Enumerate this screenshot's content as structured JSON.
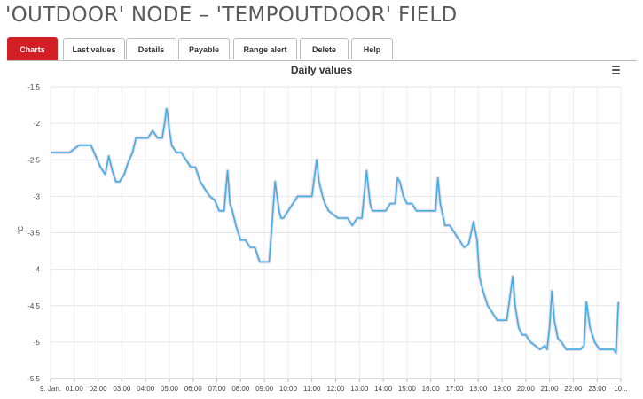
{
  "page": {
    "title": "'OUTDOOR' NODE – 'TEMPOUTDOOR' FIELD"
  },
  "tabs": [
    {
      "label": "Charts",
      "active": true
    },
    {
      "label": "Last values",
      "active": false
    },
    {
      "label": "Details",
      "active": false
    },
    {
      "label": "Payable",
      "active": false
    },
    {
      "label": "Range alert",
      "active": false
    },
    {
      "label": "Delete",
      "active": false
    },
    {
      "label": "Help",
      "active": false
    }
  ],
  "colors": {
    "accent": "#d21f25",
    "series": "#3eaee8",
    "range": "#d8c8d4"
  },
  "chart_data": {
    "type": "line",
    "title": "Daily values",
    "ylabel": "°C",
    "ylim": [
      -5.5,
      -1.5
    ],
    "yticks": [
      -1.5,
      -2,
      -2.5,
      -3,
      -3.5,
      -4,
      -4.5,
      -5,
      -5.5
    ],
    "xticks": [
      "9. Jan.",
      "01:00",
      "02:00",
      "03:00",
      "04:00",
      "05:00",
      "06:00",
      "07:00",
      "08:00",
      "09:00",
      "10:00",
      "11:00",
      "12:00",
      "13:00",
      "14:00",
      "15:00",
      "16:00",
      "17:00",
      "18:00",
      "19:00",
      "20:00",
      "21:00",
      "22:00",
      "23:00",
      "10..."
    ],
    "grid": true,
    "series": [
      {
        "x": [
          0,
          0.2,
          0.5,
          0.8,
          1.0,
          1.2,
          1.5,
          1.7,
          1.9,
          2.1,
          2.3,
          2.45,
          2.6,
          2.75,
          2.9,
          3.1,
          3.25,
          3.45,
          3.6,
          3.8,
          3.95,
          4.1,
          4.3,
          4.5,
          4.7,
          4.8,
          4.88,
          4.92,
          5.0,
          5.1,
          5.3,
          5.5,
          5.7,
          5.9,
          6.1,
          6.3,
          6.5,
          6.7,
          6.9,
          7.1,
          7.3,
          7.45,
          7.55,
          7.65,
          7.8,
          8.0,
          8.2,
          8.4,
          8.6,
          8.8,
          9.0,
          9.2,
          9.45,
          9.62,
          9.7,
          9.8,
          10.0,
          10.2,
          10.4,
          10.6,
          10.8,
          11.0,
          11.2,
          11.3,
          11.45,
          11.55,
          11.7,
          11.9,
          12.1,
          12.3,
          12.5,
          12.7,
          12.9,
          13.1,
          13.3,
          13.45,
          13.55,
          13.7,
          13.9,
          14.1,
          14.3,
          14.5,
          14.6,
          14.7,
          14.85,
          15.0,
          15.2,
          15.4,
          15.6,
          15.8,
          16.0,
          16.2,
          16.3,
          16.4,
          16.5,
          16.6,
          16.8,
          17.0,
          17.2,
          17.4,
          17.6,
          17.8,
          17.95,
          18.05,
          18.2,
          18.4,
          18.6,
          18.8,
          19.0,
          19.2,
          19.45,
          19.55,
          19.7,
          19.85,
          20.0,
          20.2,
          20.4,
          20.6,
          20.8,
          20.9,
          21.0,
          21.1,
          21.2,
          21.35,
          21.5,
          21.7,
          21.9,
          22.1,
          22.3,
          22.45,
          22.55,
          22.7,
          22.9,
          23.1,
          23.3,
          23.5,
          23.7,
          23.8,
          23.9
        ],
        "y": [
          -2.4,
          -2.4,
          -2.4,
          -2.4,
          -2.35,
          -2.3,
          -2.3,
          -2.3,
          -2.45,
          -2.6,
          -2.7,
          -2.45,
          -2.65,
          -2.8,
          -2.8,
          -2.7,
          -2.55,
          -2.4,
          -2.2,
          -2.2,
          -2.2,
          -2.2,
          -2.1,
          -2.2,
          -2.2,
          -2.0,
          -1.8,
          -1.85,
          -2.1,
          -2.3,
          -2.4,
          -2.4,
          -2.5,
          -2.6,
          -2.6,
          -2.8,
          -2.9,
          -3.0,
          -3.05,
          -3.2,
          -3.2,
          -2.65,
          -3.1,
          -3.2,
          -3.4,
          -3.6,
          -3.6,
          -3.7,
          -3.7,
          -3.9,
          -3.9,
          -3.9,
          -2.8,
          -3.2,
          -3.3,
          -3.3,
          -3.2,
          -3.1,
          -3.0,
          -3.0,
          -3.0,
          -3.0,
          -2.5,
          -2.8,
          -3.0,
          -3.1,
          -3.2,
          -3.25,
          -3.3,
          -3.3,
          -3.3,
          -3.4,
          -3.3,
          -3.3,
          -2.65,
          -3.1,
          -3.2,
          -3.2,
          -3.2,
          -3.2,
          -3.1,
          -3.1,
          -2.75,
          -2.8,
          -3.0,
          -3.1,
          -3.1,
          -3.2,
          -3.2,
          -3.2,
          -3.2,
          -3.2,
          -2.75,
          -3.1,
          -3.25,
          -3.4,
          -3.4,
          -3.5,
          -3.6,
          -3.7,
          -3.65,
          -3.35,
          -3.6,
          -4.1,
          -4.3,
          -4.5,
          -4.6,
          -4.7,
          -4.7,
          -4.7,
          -4.1,
          -4.5,
          -4.8,
          -4.9,
          -4.9,
          -5.0,
          -5.05,
          -5.1,
          -5.05,
          -5.1,
          -4.8,
          -4.3,
          -4.7,
          -4.95,
          -5.0,
          -5.1,
          -5.1,
          -5.1,
          -5.1,
          -5.05,
          -4.45,
          -4.8,
          -5.0,
          -5.1,
          -5.1,
          -5.1,
          -5.1,
          -5.15,
          -4.45
        ]
      }
    ]
  }
}
